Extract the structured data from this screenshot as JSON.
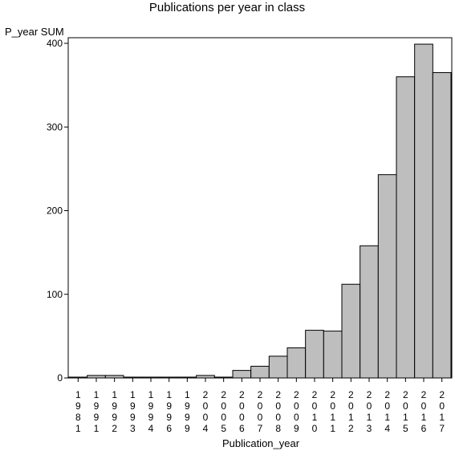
{
  "chart_data": {
    "type": "bar",
    "title": "Publications per year in class",
    "xlabel": "Publication_year",
    "ylabel": "P_year SUM",
    "categories": [
      "1981",
      "1991",
      "1992",
      "1993",
      "1994",
      "1996",
      "1999",
      "2004",
      "2005",
      "2006",
      "2007",
      "2008",
      "2009",
      "2010",
      "2011",
      "2012",
      "2013",
      "2014",
      "2015",
      "2016",
      "2017"
    ],
    "values": [
      1,
      3,
      3,
      1,
      1,
      1,
      1,
      3,
      1,
      9,
      14,
      26,
      36,
      57,
      56,
      112,
      158,
      243,
      360,
      399,
      365
    ],
    "ylim": [
      0,
      410
    ],
    "yticks": [
      0,
      100,
      200,
      300,
      400
    ],
    "grid": false,
    "legend": "none",
    "colors": {
      "bar_fill": "#bebebe",
      "bar_stroke": "#000000",
      "axis": "#000000",
      "background": "#ffffff"
    }
  }
}
